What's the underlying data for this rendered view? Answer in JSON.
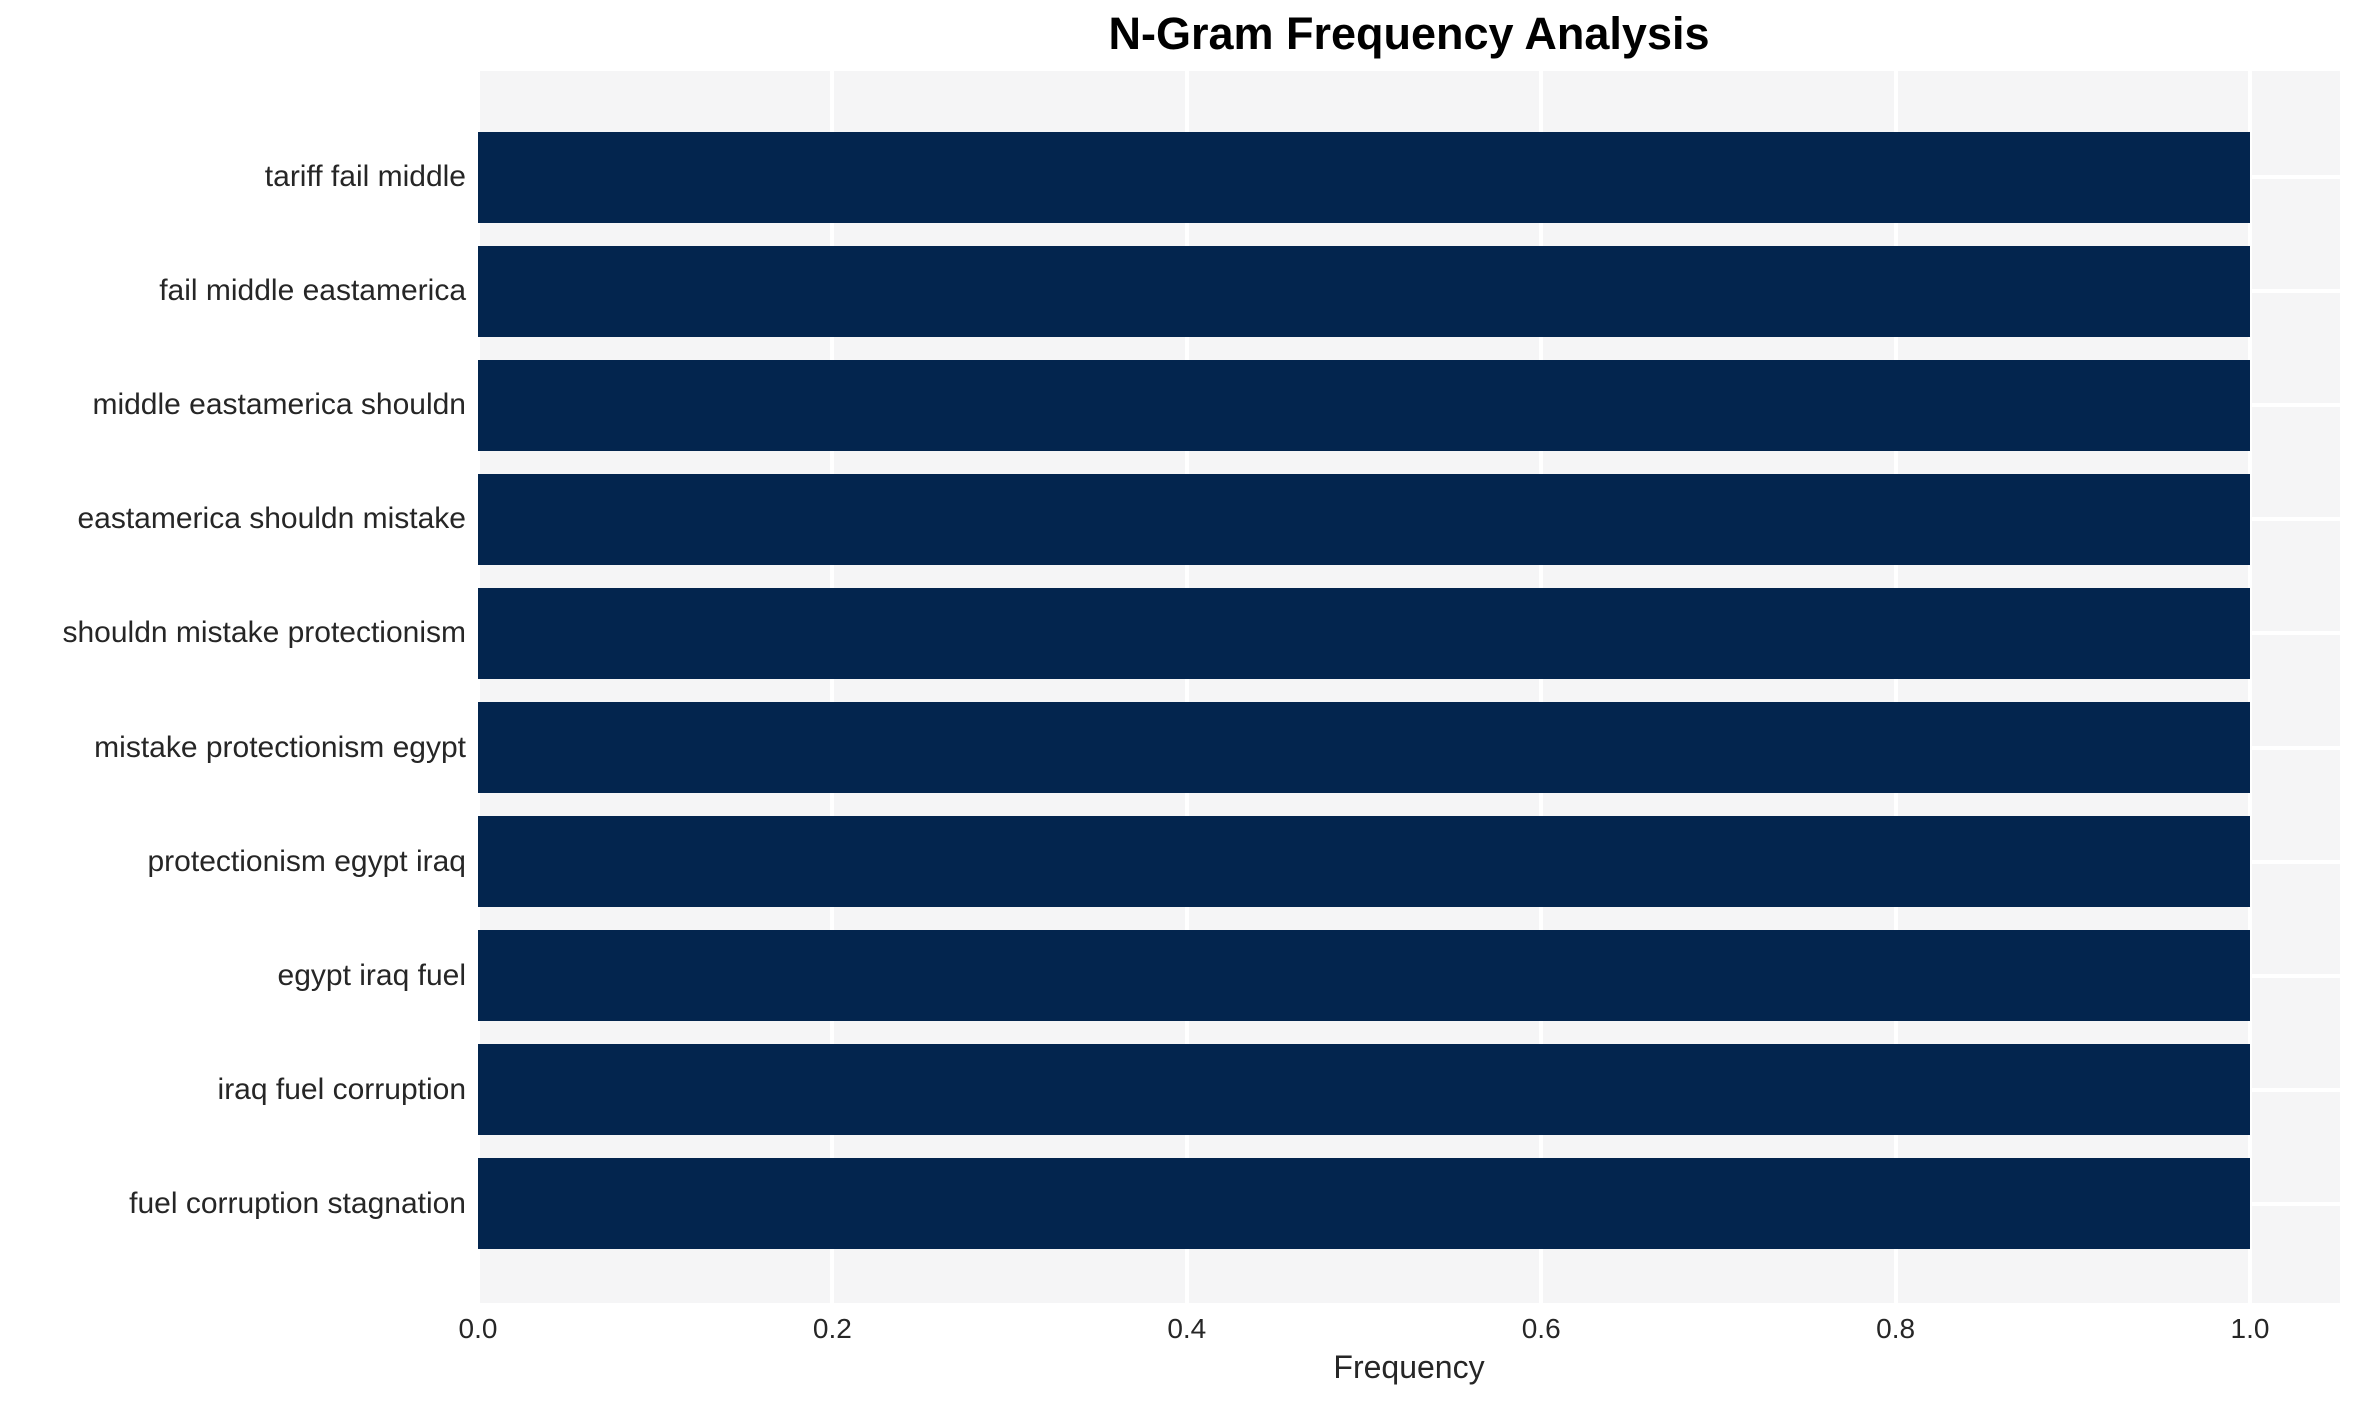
{
  "chart_data": {
    "type": "bar",
    "orientation": "horizontal",
    "title": "N-Gram Frequency Analysis",
    "xlabel": "Frequency",
    "ylabel": "",
    "categories": [
      "tariff fail middle",
      "fail middle eastamerica",
      "middle eastamerica shouldn",
      "eastamerica shouldn mistake",
      "shouldn mistake protectionism",
      "mistake protectionism egypt",
      "protectionism egypt iraq",
      "egypt iraq fuel",
      "iraq fuel corruption",
      "fuel corruption stagnation"
    ],
    "values": [
      1.0,
      1.0,
      1.0,
      1.0,
      1.0,
      1.0,
      1.0,
      1.0,
      1.0,
      1.0
    ],
    "xticks": [
      "0.0",
      "0.2",
      "0.4",
      "0.6",
      "0.8",
      "1.0"
    ],
    "xtick_values": [
      0.0,
      0.2,
      0.4,
      0.6,
      0.8,
      1.0
    ],
    "xlim": [
      0.0,
      1.05
    ],
    "grid": true,
    "legend": "none",
    "colors": {
      "bar": "#03254e",
      "plot_background": "#f5f5f6",
      "gridline": "#ffffff",
      "tick_text": "#262626",
      "title_text": "#000000"
    }
  }
}
